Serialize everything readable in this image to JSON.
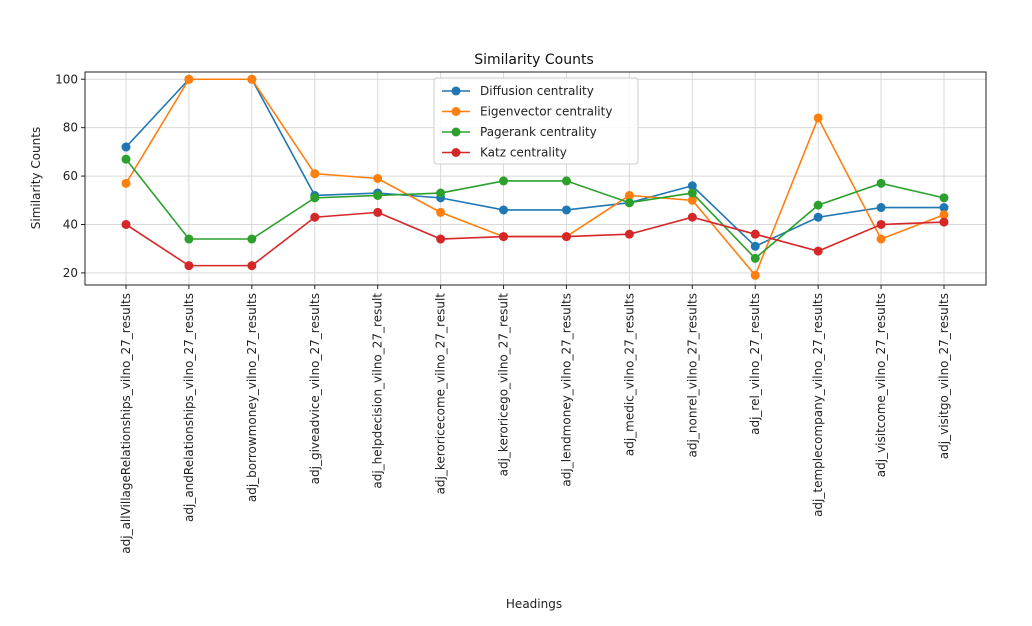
{
  "chart_data": {
    "type": "line",
    "title": "Similarity Counts",
    "xlabel": "Headings",
    "ylabel": "Similarity Counts",
    "ylim": [
      15,
      103
    ],
    "yticks": [
      20,
      40,
      60,
      80,
      100
    ],
    "grid": true,
    "legend_position": "top-center",
    "categories": [
      "adj_allVillageRelationships_vilno_27_results",
      "adj_andRelationships_vilno_27_results",
      "adj_borrowmoney_vilno_27_results",
      "adj_giveadvice_vilno_27_results",
      "adj_helpdecision_vilno_27_result",
      "adj_keroricecome_vilno_27_result",
      "adj_keroricego_vilno_27_result",
      "adj_lendmoney_vilno_27_results",
      "adj_medic_vilno_27_results",
      "adj_nonrel_vilno_27_results",
      "adj_rel_vilno_27_results",
      "adj_templecompany_vilno_27_results",
      "adj_visitcome_vilno_27_results",
      "adj_visitgo_vilno_27_results"
    ],
    "series": [
      {
        "name": "Diffusion centrality",
        "color": "#1f77b4",
        "values": [
          72,
          100,
          100,
          52,
          53,
          51,
          46,
          46,
          49,
          56,
          31,
          43,
          47,
          47
        ]
      },
      {
        "name": "Eigenvector centrality",
        "color": "#ff7f0e",
        "values": [
          57,
          100,
          100,
          61,
          59,
          45,
          35,
          35,
          52,
          50,
          19,
          84,
          34,
          44
        ]
      },
      {
        "name": "Pagerank centrality",
        "color": "#2ca02c",
        "values": [
          67,
          34,
          34,
          51,
          52,
          53,
          58,
          58,
          49,
          53,
          26,
          48,
          57,
          51
        ]
      },
      {
        "name": "Katz centrality",
        "color": "#d62728",
        "values": [
          40,
          23,
          23,
          43,
          45,
          34,
          35,
          35,
          36,
          43,
          36,
          29,
          40,
          41
        ]
      }
    ]
  }
}
